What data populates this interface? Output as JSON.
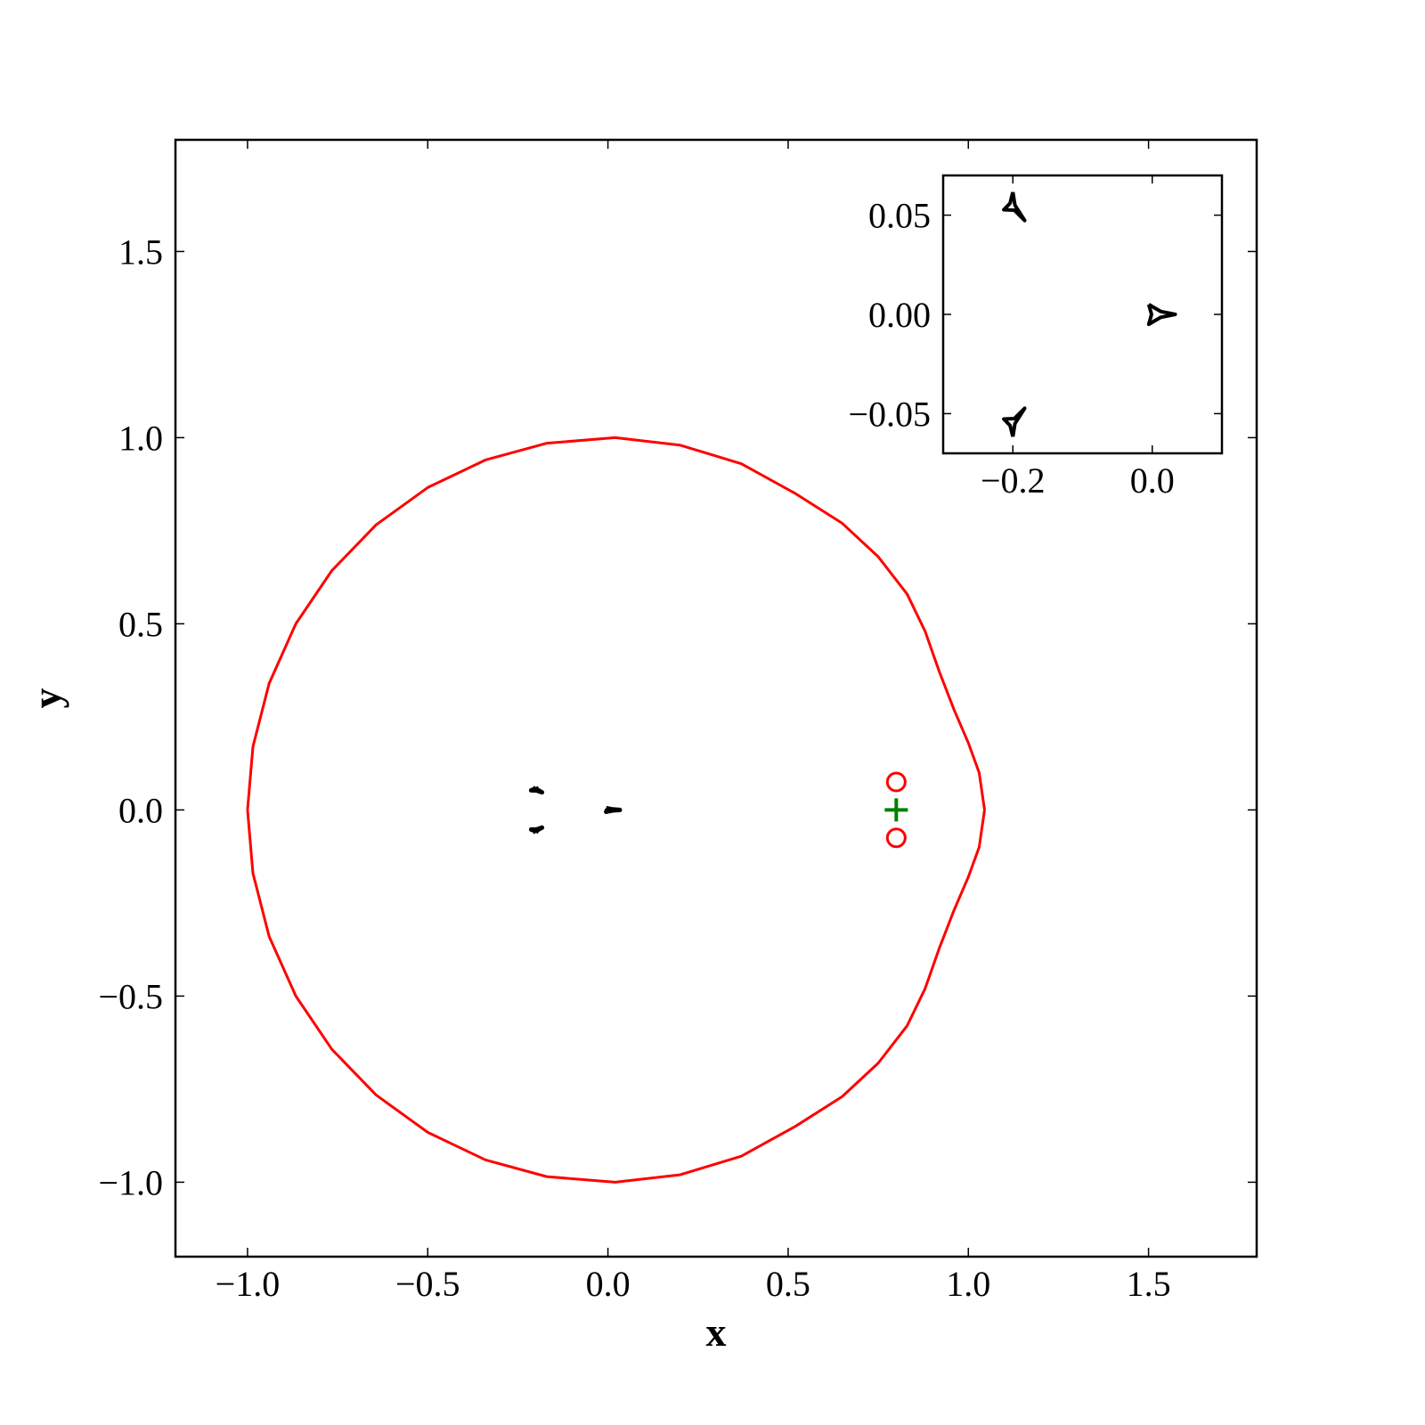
{
  "chart_data": [
    {
      "type": "line",
      "xlabel": "x",
      "ylabel": "y",
      "xlim": [
        -1.2,
        1.8
      ],
      "ylim": [
        -1.2,
        1.8
      ],
      "xticks": [
        {
          "value": -1.0,
          "label": "−1.0"
        },
        {
          "value": -0.5,
          "label": "−0.5"
        },
        {
          "value": 0,
          "label": "0.0"
        },
        0.5,
        {
          "value": 1.0,
          "label": "1.0"
        },
        1.5
      ],
      "yticks": [
        {
          "value": -1.0,
          "label": "−1.0"
        },
        {
          "value": -0.5,
          "label": "−0.5"
        },
        {
          "value": 0,
          "label": "0.0"
        },
        0.5,
        {
          "value": 1.0,
          "label": "1.0"
        },
        1.5
      ],
      "series": [
        {
          "color": "#ff0000",
          "x": [
            -1.0,
            -0.985,
            -0.94,
            -0.866,
            -0.766,
            -0.643,
            -0.5,
            -0.34,
            -0.17,
            0.02,
            0.2,
            0.37,
            0.52,
            0.65,
            0.75,
            0.83,
            0.88,
            0.92,
            0.96,
            1.0,
            1.03,
            1.045,
            1.03,
            1.0,
            0.96,
            0.92,
            0.88,
            0.83,
            0.75,
            0.65,
            0.52,
            0.37,
            0.2,
            0.02,
            -0.17,
            -0.34,
            -0.5,
            -0.643,
            -0.766,
            -0.866,
            -0.94,
            -0.985,
            -1.0
          ],
          "y": [
            0,
            0.17,
            0.34,
            0.5,
            0.643,
            0.766,
            0.866,
            0.94,
            0.985,
            1.0,
            0.98,
            0.93,
            0.85,
            0.77,
            0.68,
            0.58,
            0.48,
            0.37,
            0.27,
            0.18,
            0.1,
            0,
            -0.1,
            -0.18,
            -0.27,
            -0.37,
            -0.48,
            -0.58,
            -0.68,
            -0.77,
            -0.85,
            -0.93,
            -0.98,
            -1.0,
            -0.985,
            -0.94,
            -0.866,
            -0.766,
            -0.643,
            -0.5,
            -0.34,
            -0.17,
            0
          ]
        },
        {
          "color": "#000000",
          "x": [
            -0.005,
            0.012,
            0.033,
            0.012,
            -0.005,
            -0.001,
            -0.005
          ],
          "y": [
            0.005,
            0.0015,
            0,
            -0.0015,
            -0.005,
            0,
            0.005
          ]
        },
        {
          "color": "#000000",
          "x": [
            -0.2,
            -0.204,
            -0.213,
            -0.198,
            -0.183,
            -0.197,
            -0.2
          ],
          "y": [
            0.0616,
            0.056,
            0.0527,
            0.0525,
            0.0473,
            0.055,
            0.0616
          ]
        },
        {
          "color": "#000000",
          "x": [
            -0.2,
            -0.204,
            -0.213,
            -0.198,
            -0.183,
            -0.197,
            -0.2
          ],
          "y": [
            -0.0616,
            -0.056,
            -0.0527,
            -0.0525,
            -0.0473,
            -0.055,
            -0.0616
          ]
        },
        {
          "color": "#ff0000",
          "marker": "o",
          "x": [
            0.8,
            0.8
          ],
          "y": [
            0.075,
            -0.075
          ]
        },
        {
          "color": "#008000",
          "marker": "+",
          "x": [
            0.8
          ],
          "y": [
            0
          ]
        }
      ]
    },
    {
      "type": "line",
      "xlim": [
        -0.3,
        0.1
      ],
      "ylim": [
        -0.07,
        0.07
      ],
      "xticks": [
        {
          "value": -0.2,
          "label": "−0.2"
        },
        {
          "value": 0,
          "label": "0.0"
        }
      ],
      "yticks": [
        {
          "value": -0.05,
          "label": "−0.05"
        },
        {
          "value": 0,
          "label": "0.00"
        },
        0.05
      ],
      "series": [
        {
          "color": "#000000",
          "x": [
            -0.005,
            0.012,
            0.033,
            0.012,
            -0.005,
            -0.001,
            -0.005
          ],
          "y": [
            0.005,
            0.0015,
            0,
            -0.0015,
            -0.005,
            0,
            0.005
          ]
        },
        {
          "color": "#000000",
          "x": [
            -0.2,
            -0.204,
            -0.213,
            -0.198,
            -0.183,
            -0.197,
            -0.2
          ],
          "y": [
            0.0616,
            0.056,
            0.0527,
            0.0525,
            0.0473,
            0.055,
            0.0616
          ]
        },
        {
          "color": "#000000",
          "x": [
            -0.2,
            -0.204,
            -0.213,
            -0.198,
            -0.183,
            -0.197,
            -0.2
          ],
          "y": [
            -0.0616,
            -0.056,
            -0.0527,
            -0.0525,
            -0.0473,
            -0.055,
            -0.0616
          ]
        }
      ]
    }
  ]
}
